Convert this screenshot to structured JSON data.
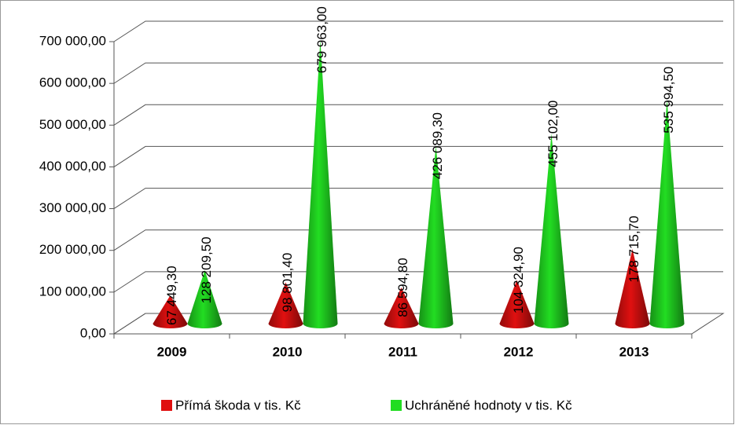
{
  "chart_data": {
    "type": "cone3d",
    "categories": [
      "2009",
      "2010",
      "2011",
      "2012",
      "2013"
    ],
    "series": [
      {
        "name": "Přímá škoda v tis. Kč",
        "color": "#e01010",
        "values": [
          67449.3,
          98801.4,
          86594.8,
          104324.9,
          178715.7
        ],
        "value_labels": [
          "67 449,30",
          "98 801,40",
          "86 594,80",
          "104 324,90",
          "178 715,70"
        ]
      },
      {
        "name": "Uchráněné hodnoty v tis. Kč",
        "color": "#22dd22",
        "values": [
          128209.5,
          679963,
          426089.3,
          455102,
          535994.5
        ],
        "value_labels": [
          "128 209,50",
          "679 963,00",
          "426 089,30",
          "455 102,00",
          "535 994,50"
        ]
      }
    ],
    "ylim": [
      0,
      700000
    ],
    "yticks": [
      {
        "value": 0,
        "label": "0,00"
      },
      {
        "value": 100000,
        "label": "100 000,00"
      },
      {
        "value": 200000,
        "label": "200 000,00"
      },
      {
        "value": 300000,
        "label": "300 000,00"
      },
      {
        "value": 400000,
        "label": "400 000,00"
      },
      {
        "value": 500000,
        "label": "500 000,00"
      },
      {
        "value": 600000,
        "label": "600 000,00"
      },
      {
        "value": 700000,
        "label": "700 000,00"
      }
    ],
    "grid": true,
    "legend": "bottom"
  }
}
